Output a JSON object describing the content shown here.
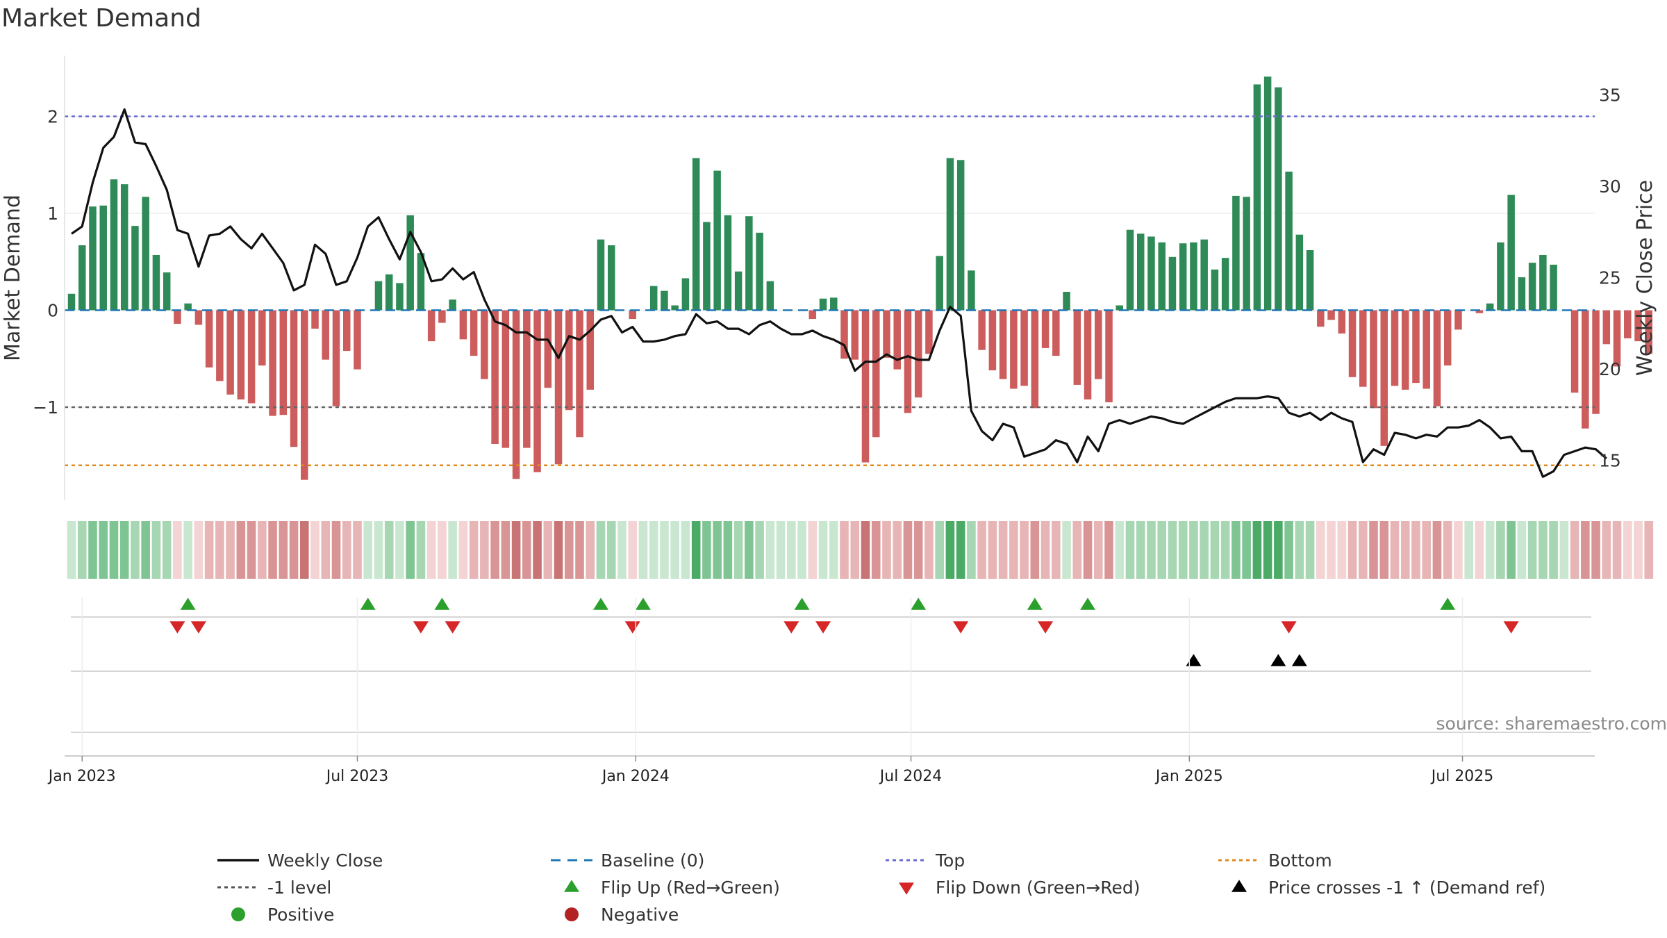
{
  "chart_data": {
    "type": "bar",
    "title": "Market Demand",
    "ylabel": "Market Demand",
    "y2label": "Weekly Close Price",
    "source": "source: sharemaestro.com",
    "ylim": [
      -1.95,
      2.6
    ],
    "y2lim": [
      13.9,
      36.8
    ],
    "yticks": [
      "2",
      "1",
      "0",
      "−1"
    ],
    "ytick_values": [
      2,
      1,
      0,
      -1
    ],
    "y2ticks": [
      "35",
      "30",
      "25",
      "20",
      "15"
    ],
    "y2tick_values": [
      35,
      30,
      25,
      20,
      15
    ],
    "x_start": "2022-12-26",
    "x_end": "2025-09-22",
    "xticks": [
      {
        "label": "Jan 2023",
        "week": 1
      },
      {
        "label": "Jul 2023",
        "week": 27
      },
      {
        "label": "Jan 2024",
        "week": 53.3
      },
      {
        "label": "Jul 2024",
        "week": 79.3
      },
      {
        "label": "Jan 2025",
        "week": 105.6
      },
      {
        "label": "Jul 2025",
        "week": 131.4
      }
    ],
    "reference_lines": {
      "top": 2.0,
      "bottom": -1.6,
      "minus_one": -1.0,
      "baseline": 0
    },
    "demand": [
      0.17,
      0.67,
      1.07,
      1.08,
      1.35,
      1.3,
      0.87,
      1.17,
      0.57,
      0.39,
      -0.14,
      0.07,
      -0.15,
      -0.59,
      -0.73,
      -0.87,
      -0.92,
      -0.96,
      -0.57,
      -1.09,
      -1.08,
      -1.41,
      -1.75,
      -0.19,
      -0.51,
      -0.99,
      -0.42,
      -0.61,
      0,
      0.3,
      0.37,
      0.28,
      0.98,
      0.59,
      -0.32,
      -0.13,
      0.11,
      -0.3,
      -0.47,
      -0.71,
      -1.38,
      -1.42,
      -1.74,
      -1.42,
      -1.67,
      -0.8,
      -1.59,
      -1.03,
      -1.31,
      -0.82,
      0.73,
      0.67,
      0,
      -0.09,
      0,
      0.25,
      0.2,
      0.05,
      0.33,
      1.57,
      0.91,
      1.44,
      0.98,
      0.4,
      0.97,
      0.8,
      0.3,
      0,
      0,
      0,
      -0.09,
      0.12,
      0.13,
      -0.5,
      -0.51,
      -1.57,
      -1.31,
      -0.49,
      -0.61,
      -1.06,
      -0.9,
      -0.45,
      0.56,
      1.57,
      1.55,
      0.41,
      -0.41,
      -0.62,
      -0.71,
      -0.81,
      -0.78,
      -1.01,
      -0.39,
      -0.47,
      0.19,
      -0.77,
      -0.92,
      -0.71,
      -0.95,
      0.05,
      0.83,
      0.79,
      0.76,
      0.7,
      0.55,
      0.69,
      0.7,
      0.73,
      0.42,
      0.54,
      1.18,
      1.17,
      2.33,
      2.41,
      2.3,
      1.43,
      0.78,
      0.62,
      -0.17,
      -0.1,
      -0.24,
      -0.69,
      -0.79,
      -1.01,
      -1.4,
      -0.78,
      -0.82,
      -0.75,
      -0.81,
      -0.99,
      -0.57,
      -0.2,
      0,
      -0.03,
      0.07,
      0.7,
      1.19,
      0.34,
      0.49,
      0.57,
      0.47,
      0,
      -0.85,
      -1.22,
      -1.07,
      -0.35,
      -0.58,
      -0.29,
      -0.32,
      -0.45
    ],
    "price_series": {
      "name": "Weekly Close",
      "values": [
        27.4,
        27.8,
        30.2,
        32.1,
        32.7,
        34.2,
        32.4,
        32.3,
        31.1,
        29.8,
        27.6,
        27.4,
        25.6,
        27.3,
        27.4,
        27.8,
        27.1,
        26.6,
        27.4,
        26.6,
        25.8,
        24.3,
        24.6,
        26.8,
        26.3,
        24.6,
        24.8,
        26.1,
        27.8,
        28.3,
        27.1,
        26.0,
        27.5,
        26.4,
        24.8,
        24.9,
        25.5,
        24.9,
        25.3,
        23.8,
        22.6,
        22.4,
        22.0,
        22.0,
        21.6,
        21.6,
        20.6,
        21.8,
        21.6,
        22.1,
        22.7,
        22.9,
        22.0,
        22.3,
        21.5,
        21.5,
        21.6,
        21.8,
        21.9,
        23.0,
        22.5,
        22.6,
        22.2,
        22.2,
        21.9,
        22.4,
        22.6,
        22.2,
        21.9,
        21.9,
        22.1,
        21.8,
        21.6,
        21.3,
        19.9,
        20.4,
        20.4,
        20.8,
        20.5,
        20.7,
        20.5,
        20.5,
        22.1,
        23.4,
        22.9,
        17.7,
        16.6,
        16.1,
        17.0,
        16.8,
        15.2,
        15.4,
        15.6,
        16.1,
        15.9,
        14.9,
        16.3,
        15.5,
        17.0,
        17.2,
        17.0,
        17.2,
        17.4,
        17.3,
        17.1,
        17.0,
        17.3,
        17.6,
        17.9,
        18.2,
        18.4,
        18.4,
        18.4,
        18.5,
        18.4,
        17.6,
        17.4,
        17.6,
        17.2,
        17.6,
        17.3,
        17.1,
        14.9,
        15.6,
        15.3,
        16.5,
        16.4,
        16.2,
        16.4,
        16.3,
        16.8,
        16.8,
        16.9,
        17.2,
        16.8,
        16.2,
        16.3,
        15.5,
        15.5,
        14.1,
        14.4,
        15.3,
        15.5,
        15.7,
        15.6,
        15.1
      ]
    },
    "bar_colors": {
      "positive": "#2e8b57",
      "negative": "#cd5c5c"
    },
    "line_colors": {
      "price": "#111111",
      "baseline": "#1f77b4",
      "top": "#6a6ad0",
      "bottom": "#e08a1e",
      "minus_one": "#666666"
    },
    "heat_colors": {
      "pos": [
        "#c9e7d0",
        "#a6d6b2",
        "#7fc593",
        "#4bab66"
      ],
      "neg": [
        "#f3d3d3",
        "#e7b5b5",
        "#d99595",
        "#c97474"
      ]
    },
    "flip_up_weeks": [
      11,
      28,
      35,
      50,
      54,
      69,
      80,
      91,
      96,
      130
    ],
    "flip_down_weeks": [
      10,
      12,
      33,
      36,
      53,
      68,
      71,
      84,
      92,
      115,
      136
    ],
    "cross_up_weeks": [
      106,
      114,
      116
    ],
    "flip_up_color": "#2ca02c",
    "flip_down_color": "#d62728",
    "cross_up_color": "#000000",
    "legend": [
      {
        "label": "Weekly Close",
        "kind": "line",
        "color": "#111111"
      },
      {
        "label": "Baseline (0)",
        "kind": "dash",
        "color": "#1f77b4"
      },
      {
        "label": "Top",
        "kind": "dot",
        "color": "#6a6ad0"
      },
      {
        "label": "Bottom",
        "kind": "dot",
        "color": "#e08a1e"
      },
      {
        "label": "-1 level",
        "kind": "dot",
        "color": "#555555"
      },
      {
        "label": "Flip Up (Red→Green)",
        "kind": "tri-up",
        "color": "#2ca02c"
      },
      {
        "label": "Flip Down (Green→Red)",
        "kind": "tri-down",
        "color": "#d62728"
      },
      {
        "label": "Price crosses -1 ↑ (Demand ref)",
        "kind": "tri-up",
        "color": "#000000"
      },
      {
        "label": "Positive",
        "kind": "circle",
        "color": "#2ca02c"
      },
      {
        "label": "Negative",
        "kind": "circle",
        "color": "#b22222"
      }
    ]
  }
}
